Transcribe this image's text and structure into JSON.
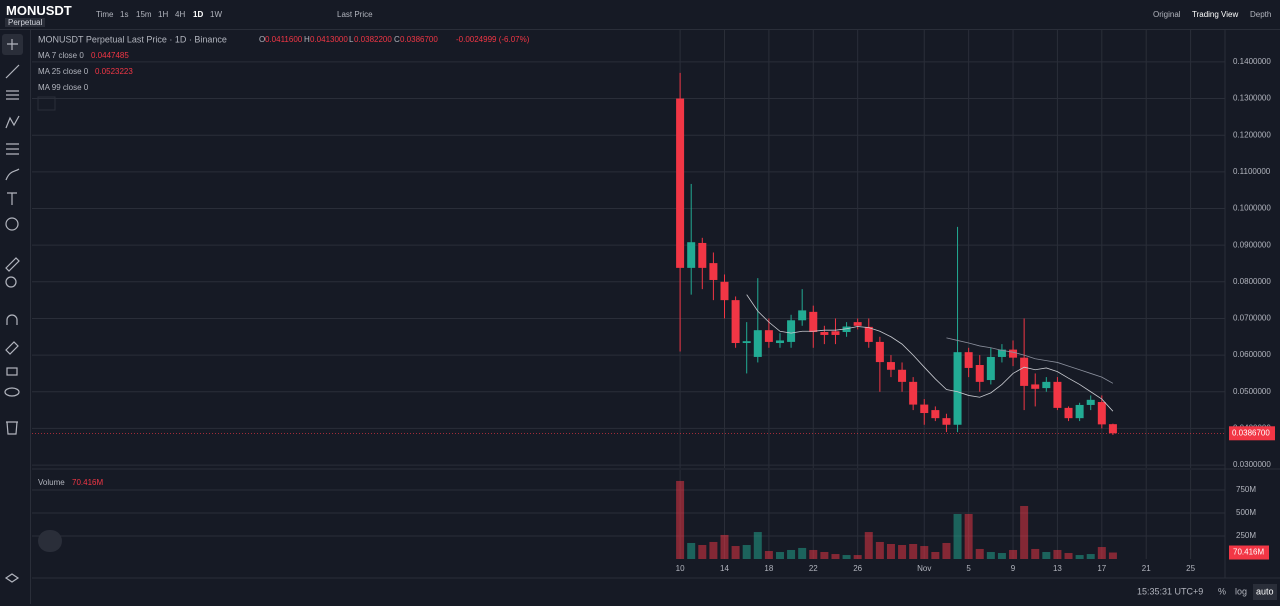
{
  "header": {
    "symbol": "MONUSDT",
    "badge": "Perpetual",
    "intervals": [
      "Time",
      "1s",
      "15m",
      "1H",
      "4H",
      "1D",
      "1W"
    ],
    "price_type": "Last Price",
    "views": [
      "Original",
      "Trading View",
      "Depth"
    ]
  },
  "legend": {
    "title": "MONUSDT Perpetual Last Price · 1D · Binance",
    "o_label": "O",
    "o": "0.0411600",
    "h_label": "H",
    "h": "0.0413000",
    "l_label": "L",
    "l": "0.0382200",
    "c_label": "C",
    "c": "0.0386700",
    "change": "-0.0024999 (-6.07%)",
    "ma7": "MA 7 close 0",
    "ma7_value": "0.0447485",
    "ma25": "MA 25 close 0",
    "ma25_value": "0.0523223",
    "ma99": "MA 99 close 0",
    "volume": "Volume",
    "volume_value": "70.416M"
  },
  "footer": {
    "clock": "15:35:31 UTC+9",
    "percent": "%",
    "log": "log",
    "auto": "auto"
  },
  "chart_data": {
    "type": "candlestick",
    "up_color": "#22ab94",
    "down_color": "#f23645",
    "grid": true,
    "xlim": [
      -58.4,
      49.1
    ],
    "xticks": [
      {
        "value": 0,
        "label": "10"
      },
      {
        "value": 4,
        "label": "14"
      },
      {
        "value": 8,
        "label": "18"
      },
      {
        "value": 12,
        "label": "22"
      },
      {
        "value": 16,
        "label": "26"
      },
      {
        "value": 22,
        "label": "Nov"
      },
      {
        "value": 26,
        "label": "5"
      },
      {
        "value": 30,
        "label": "9"
      },
      {
        "value": 34,
        "label": "13"
      },
      {
        "value": 38,
        "label": "17"
      },
      {
        "value": 42,
        "label": "21"
      },
      {
        "value": 46,
        "label": "25"
      }
    ],
    "ylim": [
      0.0292,
      0.1487
    ],
    "yticks": [
      {
        "value": 0.14,
        "label": "0.1400000"
      },
      {
        "value": 0.13,
        "label": "0.1300000"
      },
      {
        "value": 0.12,
        "label": "0.1200000"
      },
      {
        "value": 0.11,
        "label": "0.1100000"
      },
      {
        "value": 0.1,
        "label": "0.1000000"
      },
      {
        "value": 0.09,
        "label": "0.0900000"
      },
      {
        "value": 0.08,
        "label": "0.0800000"
      },
      {
        "value": 0.07,
        "label": "0.0700000"
      },
      {
        "value": 0.06,
        "label": "0.0600000"
      },
      {
        "value": 0.05,
        "label": "0.0500000"
      },
      {
        "value": 0.04,
        "label": "0.0400000"
      },
      {
        "value": 0.03,
        "label": "0.0300000"
      }
    ],
    "last_price": {
      "value": 0.03867,
      "label": "0.0386700"
    },
    "open": [
      0.13,
      0.0838,
      0.0906,
      0.0851,
      0.08,
      0.075,
      0.0633,
      0.0595,
      0.0668,
      0.0633,
      0.0636,
      0.0695,
      0.0718,
      0.0663,
      0.0665,
      0.0663,
      0.069,
      0.0677,
      0.0636,
      0.0581,
      0.056,
      0.0527,
      0.0465,
      0.045,
      0.0428,
      0.041,
      0.0608,
      0.0573,
      0.0532,
      0.0595,
      0.0615,
      0.0593,
      0.052,
      0.051,
      0.0527,
      0.0456,
      0.0428,
      0.0464,
      0.0472,
      0.04116
    ],
    "high": [
      0.137,
      0.1067,
      0.092,
      0.088,
      0.082,
      0.076,
      0.069,
      0.081,
      0.07,
      0.066,
      0.071,
      0.078,
      0.0735,
      0.068,
      0.07,
      0.069,
      0.07,
      0.07,
      0.065,
      0.06,
      0.058,
      0.054,
      0.048,
      0.046,
      0.044,
      0.095,
      0.062,
      0.06,
      0.062,
      0.063,
      0.064,
      0.07,
      0.055,
      0.054,
      0.054,
      0.046,
      0.047,
      0.049,
      0.049,
      0.0413
    ],
    "low": [
      0.061,
      0.0765,
      0.078,
      0.075,
      0.07,
      0.062,
      0.055,
      0.058,
      0.062,
      0.062,
      0.062,
      0.068,
      0.062,
      0.063,
      0.063,
      0.065,
      0.067,
      0.062,
      0.05,
      0.054,
      0.05,
      0.045,
      0.041,
      0.042,
      0.039,
      0.039,
      0.054,
      0.05,
      0.052,
      0.058,
      0.057,
      0.045,
      0.046,
      0.05,
      0.045,
      0.042,
      0.042,
      0.045,
      0.04,
      0.03822
    ],
    "close": [
      0.0838,
      0.0908,
      0.0838,
      0.0805,
      0.075,
      0.0633,
      0.0638,
      0.0668,
      0.0636,
      0.064,
      0.0695,
      0.0722,
      0.0663,
      0.0655,
      0.0655,
      0.0678,
      0.068,
      0.0636,
      0.0581,
      0.056,
      0.0527,
      0.0465,
      0.0442,
      0.0428,
      0.041,
      0.0608,
      0.0565,
      0.0527,
      0.0595,
      0.0615,
      0.0593,
      0.0516,
      0.0508,
      0.0527,
      0.0456,
      0.0428,
      0.0464,
      0.0478,
      0.0411,
      0.03867
    ],
    "ma": [
      {
        "color": "#c8cad0",
        "values": [
          null,
          null,
          null,
          null,
          null,
          null,
          0.0765,
          0.072,
          0.069,
          0.0665,
          0.066,
          0.0665,
          0.0665,
          0.0668,
          0.0668,
          0.0672,
          0.0678,
          0.0675,
          0.0665,
          0.065,
          0.063,
          0.06,
          0.0567,
          0.0535,
          0.0506,
          0.05,
          0.049,
          0.0485,
          0.0497,
          0.052,
          0.055,
          0.0567,
          0.056,
          0.0565,
          0.0555,
          0.0537,
          0.052,
          0.05,
          0.048,
          0.0447
        ]
      },
      {
        "color": "#8a8f9c",
        "values": [
          null,
          null,
          null,
          null,
          null,
          null,
          null,
          null,
          null,
          null,
          null,
          null,
          null,
          null,
          null,
          null,
          null,
          null,
          null,
          null,
          null,
          null,
          null,
          null,
          0.0647,
          0.064,
          0.0633,
          0.0625,
          0.062,
          0.0613,
          0.0608,
          0.06,
          0.059,
          0.0585,
          0.058,
          0.057,
          0.056,
          0.055,
          0.054,
          0.0523
        ]
      }
    ],
    "volume": [
      848,
      174,
      152,
      185,
      261,
      141,
      152,
      293,
      87,
      76,
      98,
      120,
      98,
      76,
      54,
      43,
      43,
      293,
      185,
      163,
      152,
      163,
      141,
      76,
      174,
      489,
      489,
      109,
      76,
      65,
      98,
      576,
      109,
      76,
      98,
      65,
      43,
      54,
      130,
      70.416
    ],
    "vylim": [
      0,
      880
    ],
    "vyticks": [
      {
        "value": 750,
        "label": "750M"
      },
      {
        "value": 500,
        "label": "500M"
      },
      {
        "value": 250,
        "label": "250M"
      }
    ]
  }
}
